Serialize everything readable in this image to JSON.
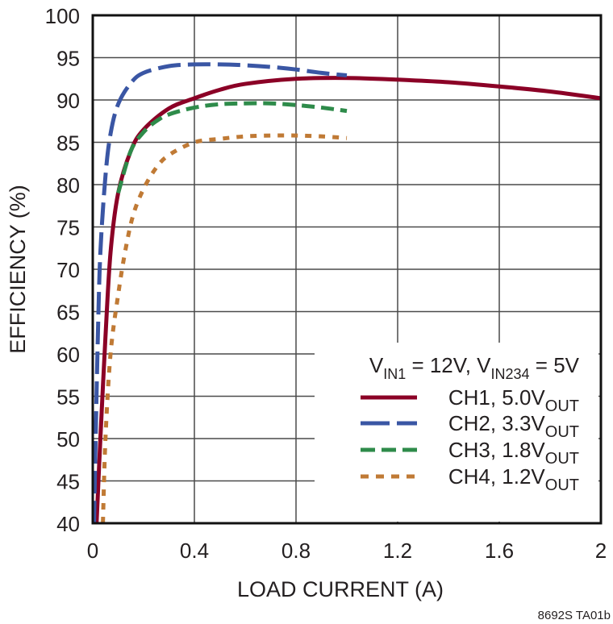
{
  "chart_data": {
    "type": "line",
    "title": "",
    "xlabel": "LOAD CURRENT (A)",
    "ylabel": "EFFICIENCY (%)",
    "xlim": [
      0,
      2
    ],
    "ylim": [
      40,
      100
    ],
    "xticks": [
      "0",
      "0.4",
      "0.8",
      "1.2",
      "1.6",
      "2"
    ],
    "yticks": [
      "40",
      "45",
      "50",
      "55",
      "60",
      "65",
      "70",
      "75",
      "80",
      "85",
      "90",
      "95",
      "100"
    ],
    "grid": true,
    "legend_position": "lower right",
    "legend_title": "VIN1 = 12V, VIN234 = 5V",
    "series": [
      {
        "name": "CH1, 5.0VOUT",
        "color": "#8b0026",
        "style": "solid",
        "x": [
          0.015,
          0.03,
          0.05,
          0.07,
          0.1,
          0.15,
          0.2,
          0.3,
          0.4,
          0.5,
          0.6,
          0.8,
          1.0,
          1.2,
          1.4,
          1.6,
          1.8,
          2.0
        ],
        "y": [
          40,
          50,
          62,
          72,
          79,
          84,
          86.5,
          89,
          90.2,
          91.2,
          91.9,
          92.5,
          92.6,
          92.4,
          92.1,
          91.6,
          91.0,
          90.2
        ]
      },
      {
        "name": "CH2, 3.3VOUT",
        "color": "#3a56a4",
        "style": "long-dash",
        "x": [
          0.005,
          0.01,
          0.02,
          0.03,
          0.05,
          0.07,
          0.1,
          0.15,
          0.2,
          0.3,
          0.4,
          0.5,
          0.6,
          0.7,
          0.8,
          0.9,
          1.0
        ],
        "y": [
          40,
          48,
          62,
          72,
          81,
          86,
          89.5,
          92,
          93.2,
          94.0,
          94.2,
          94.2,
          94.1,
          93.9,
          93.6,
          93.2,
          92.9
        ]
      },
      {
        "name": "CH3, 1.8VOUT",
        "color": "#2e8b4a",
        "style": "dash",
        "x": [
          0.1,
          0.15,
          0.2,
          0.25,
          0.3,
          0.4,
          0.5,
          0.6,
          0.7,
          0.8,
          0.9,
          1.0
        ],
        "y": [
          79,
          84,
          86.2,
          87.5,
          88.3,
          89.1,
          89.5,
          89.6,
          89.6,
          89.4,
          89.1,
          88.7
        ]
      },
      {
        "name": "CH4, 1.2VOUT",
        "color": "#c07a35",
        "style": "dot",
        "x": [
          0.04,
          0.05,
          0.07,
          0.1,
          0.13,
          0.16,
          0.2,
          0.25,
          0.3,
          0.4,
          0.5,
          0.6,
          0.7,
          0.8,
          0.9,
          1.0
        ],
        "y": [
          40,
          50,
          60,
          67,
          72.5,
          76.5,
          79.5,
          82,
          83.5,
          85,
          85.4,
          85.7,
          85.8,
          85.8,
          85.7,
          85.5
        ]
      }
    ],
    "annotations": [
      "8692S TA01b"
    ]
  },
  "labels": {
    "xlabel": "LOAD CURRENT (A)",
    "ylabel": "EFFICIENCY (%)",
    "legend_title_v1": "V",
    "legend_title_sub1": "IN1",
    "legend_title_mid": " = 12V, V",
    "legend_title_sub2": "IN234",
    "legend_title_end": " = 5V",
    "legend_items": [
      {
        "prefix": "CH1, 5.0V",
        "sub": "OUT"
      },
      {
        "prefix": "CH2, 3.3V",
        "sub": "OUT"
      },
      {
        "prefix": "CH3, 1.8V",
        "sub": "OUT"
      },
      {
        "prefix": "CH4, 1.2V",
        "sub": "OUT"
      }
    ],
    "figure_id": "8692S TA01b"
  }
}
